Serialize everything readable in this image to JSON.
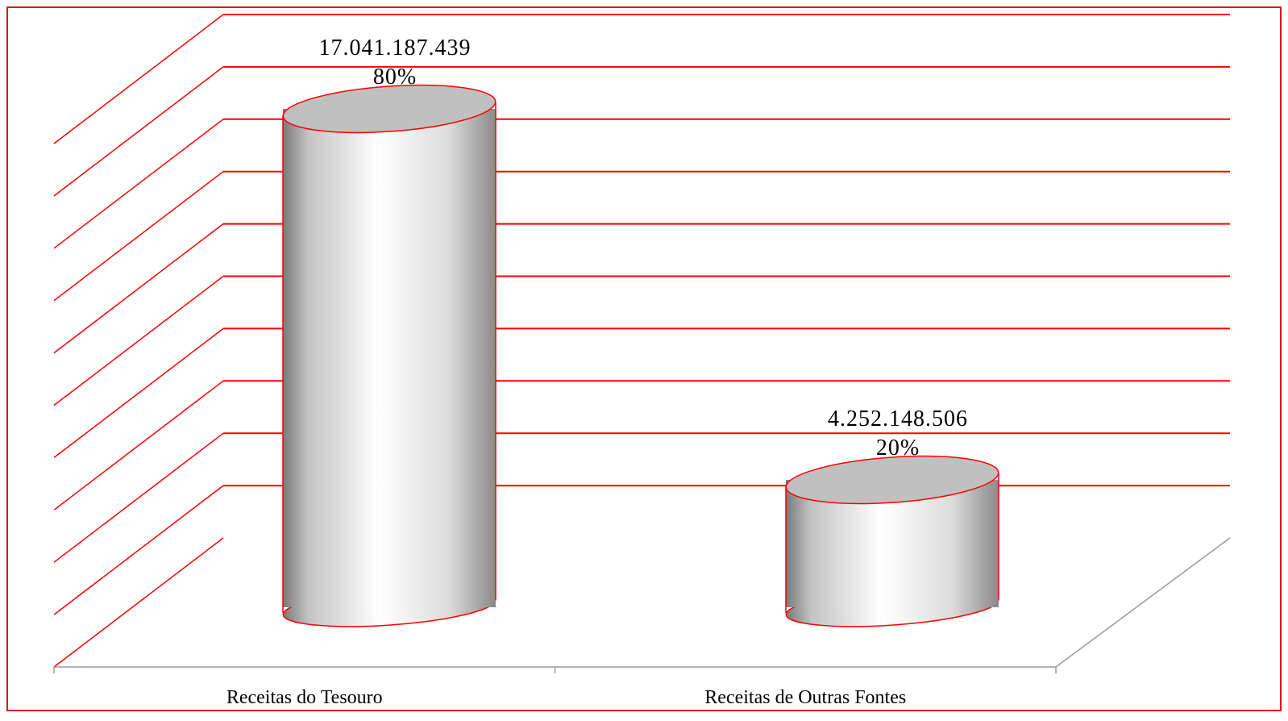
{
  "chart_data": {
    "type": "bar",
    "style": "3d-cylinder",
    "categories": [
      "Receitas do Tesouro",
      "Receitas de Outras Fontes"
    ],
    "series": [
      {
        "values": [
          17041187439,
          4252148506
        ],
        "value_labels": [
          "17.041.187.439",
          "4.252.148.506"
        ],
        "percent_labels": [
          "80%",
          "20%"
        ]
      }
    ],
    "title": "",
    "xlabel": "",
    "ylabel": "",
    "ylim": [
      0,
      20000000000
    ],
    "grid": true,
    "legend": "none",
    "colors": {
      "grid": "#ff0000",
      "border": "#e0141e",
      "cylinder_edge": "#ff0000",
      "cylinder_top": "#c0c0c0",
      "cylinder_light": "#ffffff",
      "cylinder_dark": "#7a7a7a",
      "floor": "#9a9a9a"
    }
  }
}
